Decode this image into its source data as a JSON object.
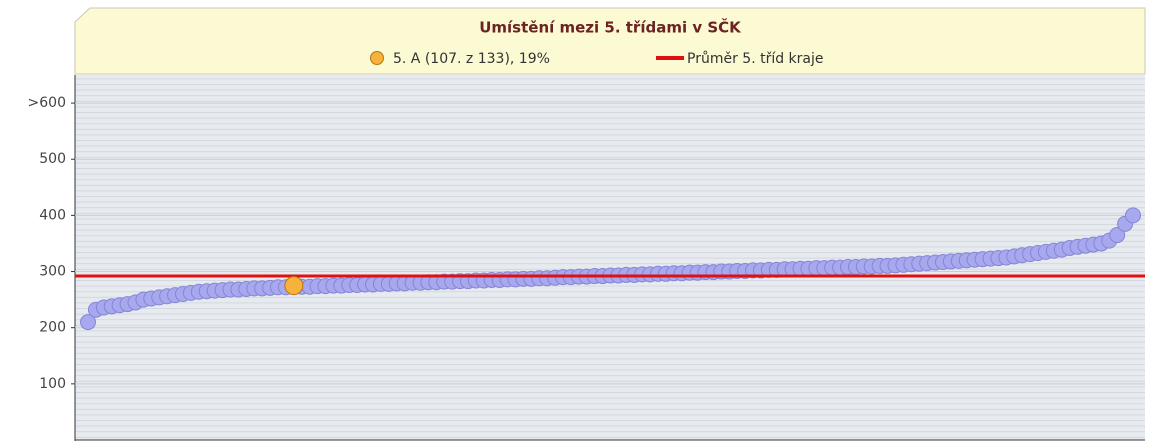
{
  "chart_data": {
    "type": "scatter",
    "title": "Umístění mezi 5. třídami v SČK",
    "values": [
      210,
      232,
      236,
      238,
      240,
      242,
      245,
      250,
      252,
      254,
      256,
      258,
      260,
      262,
      264,
      265,
      266,
      267,
      268,
      268,
      269,
      270,
      270,
      271,
      272,
      272,
      275,
      273,
      273,
      274,
      274,
      275,
      275,
      276,
      276,
      277,
      277,
      278,
      278,
      279,
      279,
      280,
      280,
      281,
      281,
      282,
      282,
      283,
      283,
      284,
      284,
      285,
      285,
      286,
      286,
      287,
      287,
      288,
      288,
      289,
      290,
      290,
      291,
      291,
      292,
      292,
      293,
      293,
      294,
      294,
      295,
      295,
      296,
      296,
      297,
      297,
      298,
      298,
      299,
      299,
      300,
      300,
      301,
      301,
      302,
      302,
      303,
      303,
      304,
      304,
      305,
      305,
      306,
      306,
      307,
      307,
      308,
      308,
      309,
      309,
      310,
      310,
      311,
      312,
      313,
      314,
      315,
      316,
      317,
      318,
      319,
      320,
      321,
      322,
      323,
      324,
      325,
      327,
      329,
      331,
      333,
      335,
      337,
      339,
      342,
      344,
      346,
      348,
      350,
      355,
      365,
      385,
      400
    ],
    "color": "#a8a8ee",
    "highlight": {
      "name": "5. A (107. z 133), 19%",
      "color": "#f7b23b",
      "index": 26
    },
    "average": {
      "name": "Průměr 5. tříd kraje",
      "value": 292,
      "color": "#e01010"
    },
    "ylim": [
      0,
      650
    ],
    "yticks": [
      100,
      200,
      300,
      400,
      500,
      {
        "value": 600,
        "label": ">600"
      }
    ],
    "grid": true
  }
}
